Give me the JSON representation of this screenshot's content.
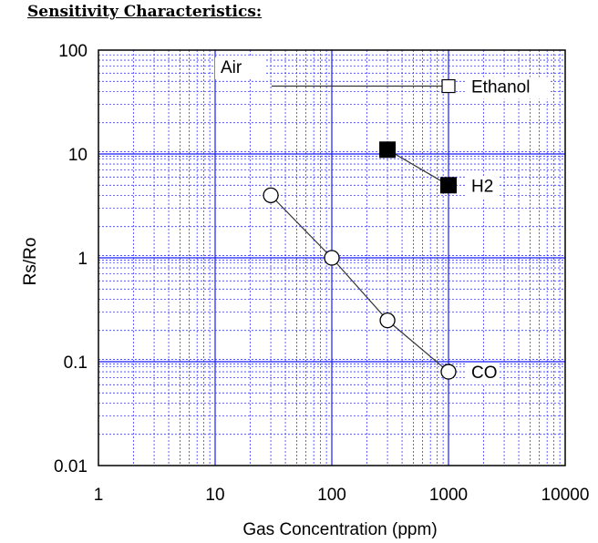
{
  "page": {
    "title": "Sensitivity Characteristics:"
  },
  "chart_data": {
    "type": "scatter",
    "title": "",
    "xlabel": "Gas Concentration (ppm)",
    "ylabel": "Rs/Ro",
    "xscale": "log",
    "yscale": "log",
    "xlim": [
      1,
      10000
    ],
    "ylim": [
      0.01,
      100
    ],
    "grid": true,
    "colors": {
      "major_grid": "#1a1aff",
      "minor_grid": "#3c3cff",
      "line": "#333333",
      "marker": "#000000"
    },
    "x_ticks": [
      "1",
      "10",
      "100",
      "1000",
      "10000"
    ],
    "y_ticks": [
      "0.01",
      "0.1",
      "1",
      "10",
      "100"
    ],
    "series": [
      {
        "name": "Ethanol",
        "marker": "open-square",
        "x": [
          1000
        ],
        "y": [
          45
        ],
        "reference_line": {
          "label": "Air",
          "x": [
            30,
            1000
          ],
          "y": [
            45,
            45
          ]
        }
      },
      {
        "name": "H2",
        "marker": "filled-square",
        "x": [
          300,
          1000
        ],
        "y": [
          11,
          5
        ]
      },
      {
        "name": "CO",
        "marker": "open-circle",
        "x": [
          30,
          100,
          300,
          1000
        ],
        "y": [
          4,
          1,
          0.25,
          0.08
        ]
      }
    ]
  }
}
